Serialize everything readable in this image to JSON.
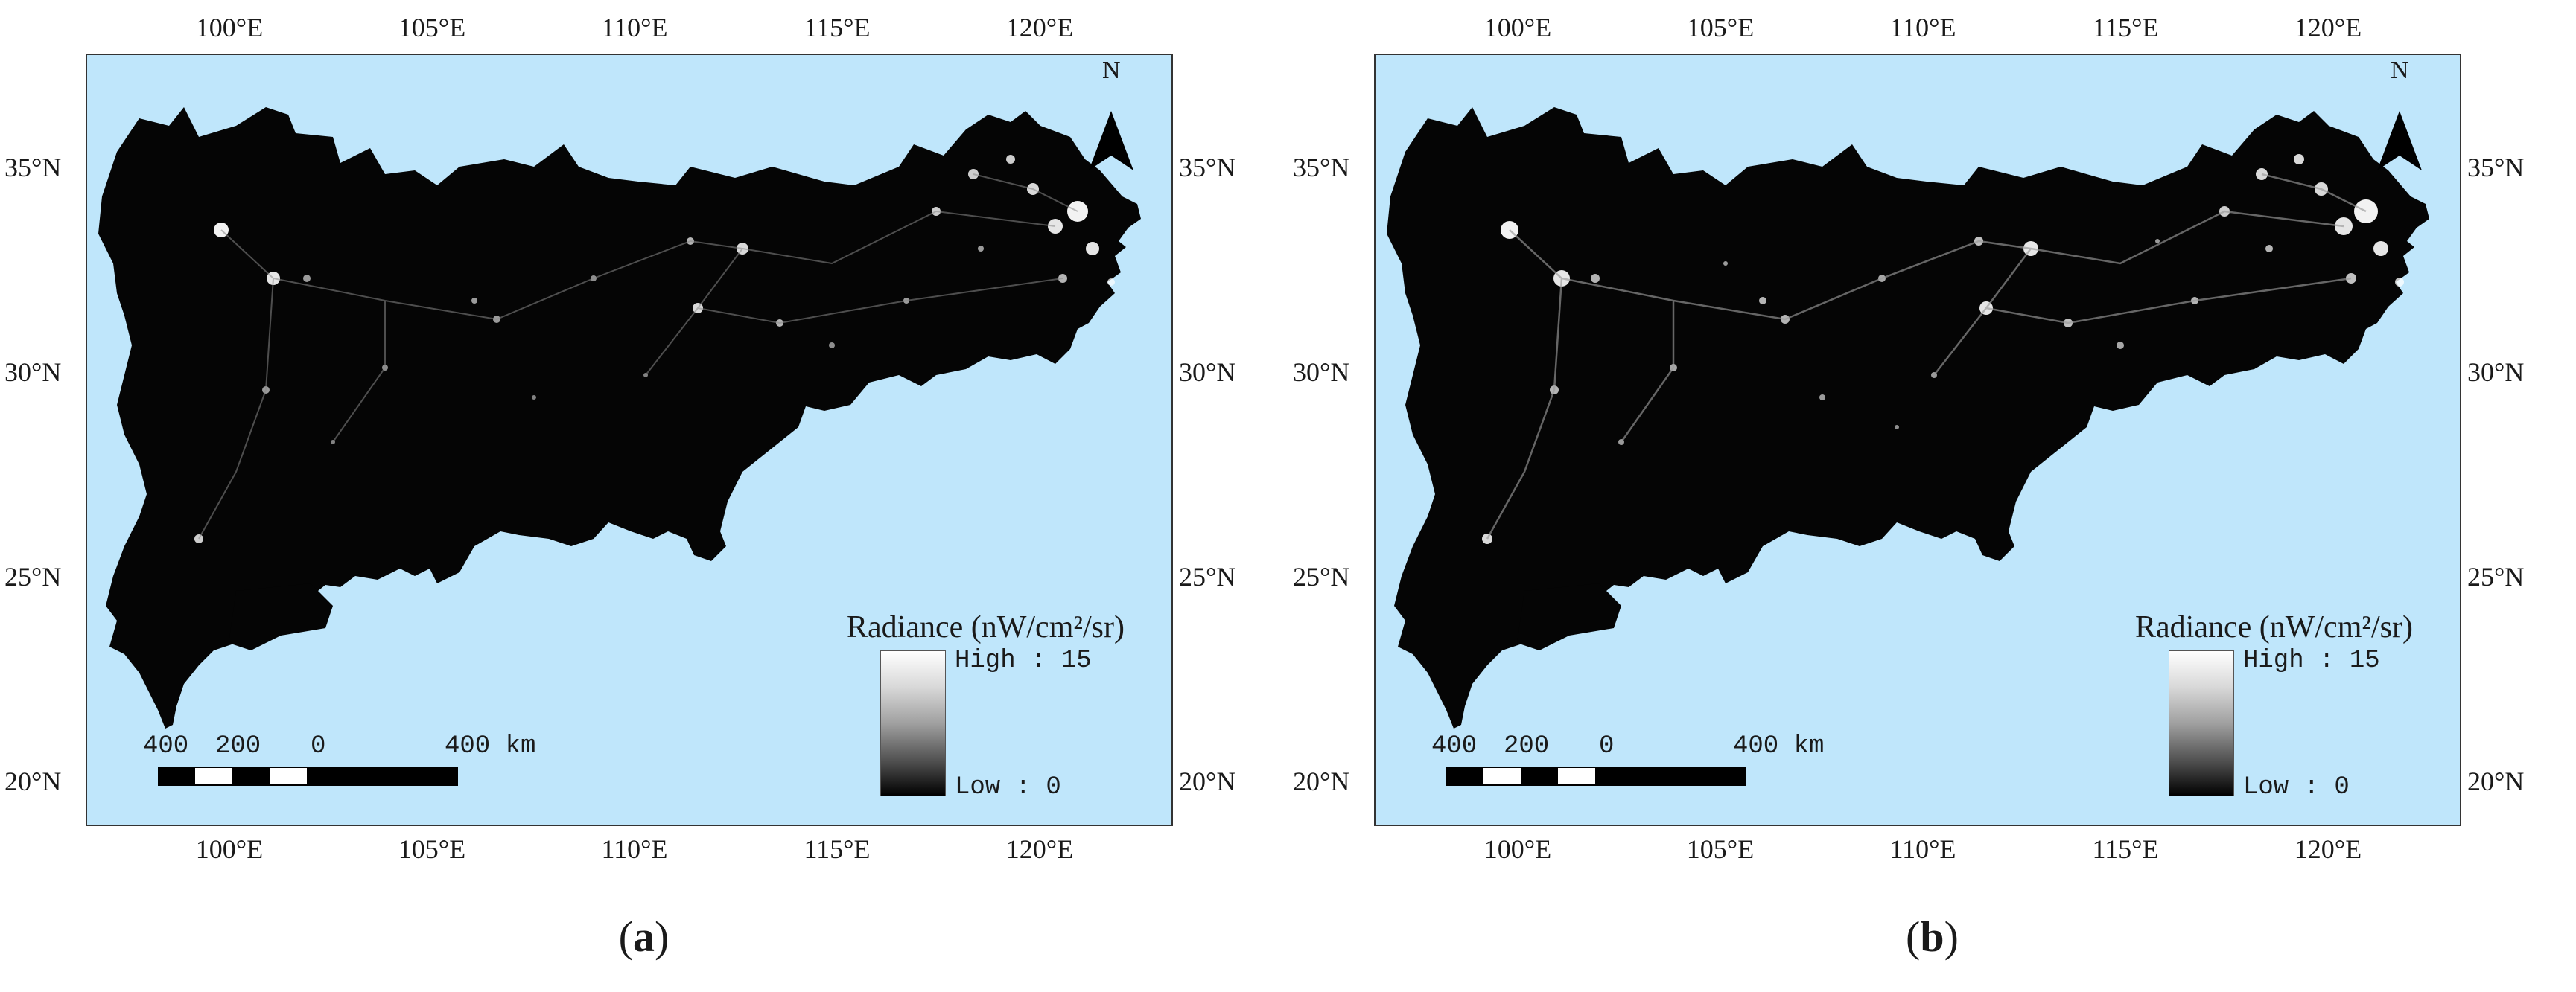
{
  "panels": [
    {
      "caption_letter": "a",
      "lon_labels": [
        "100°E",
        "105°E",
        "110°E",
        "115°E",
        "120°E"
      ],
      "lat_labels": [
        "35°N",
        "30°N",
        "25°N",
        "20°N"
      ],
      "north_label": "N",
      "legend": {
        "title": "Radiance (nW/cm²/sr)",
        "high_label": "High : 15",
        "low_label": "Low : 0",
        "high_value": 15,
        "low_value": 0
      },
      "scale_bar": {
        "labels": [
          "400",
          "200",
          "0",
          "400 km"
        ]
      }
    },
    {
      "caption_letter": "b",
      "lon_labels": [
        "100°E",
        "105°E",
        "110°E",
        "115°E",
        "120°E"
      ],
      "lat_labels": [
        "35°N",
        "30°N",
        "25°N",
        "20°N"
      ],
      "north_label": "N",
      "legend": {
        "title": "Radiance (nW/cm²/sr)",
        "high_label": "High : 15",
        "low_label": "Low : 0",
        "high_value": 15,
        "low_value": 0
      },
      "scale_bar": {
        "labels": [
          "400",
          "200",
          "0",
          "400 km"
        ]
      }
    }
  ],
  "colors": {
    "water": "#bfe6fb",
    "land": "#050505",
    "lights": "#ffffff",
    "frame": "#333333"
  },
  "icons": {
    "north_arrow": "north-arrow-icon"
  }
}
